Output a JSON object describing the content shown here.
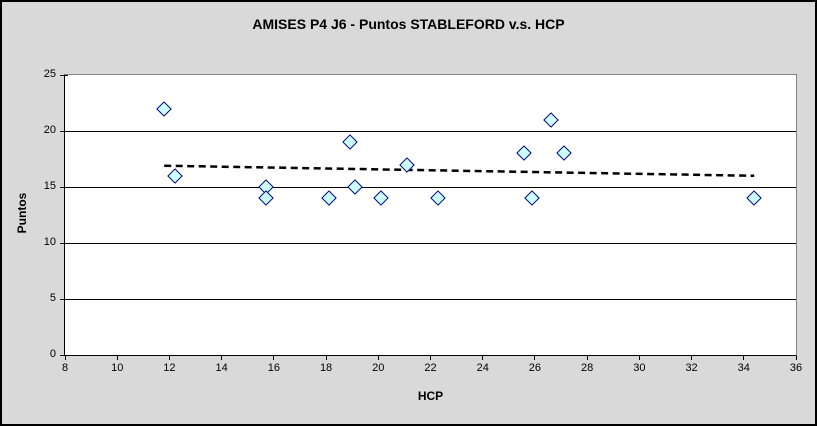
{
  "chart_data": {
    "type": "scatter",
    "title": "AMISES P4 J6 - Puntos STABLEFORD v.s. HCP",
    "xlabel": "HCP",
    "ylabel": "Puntos",
    "xlim": [
      8,
      36
    ],
    "ylim": [
      0,
      25
    ],
    "x_ticks": [
      8,
      10,
      12,
      14,
      16,
      18,
      20,
      22,
      24,
      26,
      28,
      30,
      32,
      34,
      36
    ],
    "y_ticks": [
      0,
      5,
      10,
      15,
      20,
      25
    ],
    "grid": "horizontal-only",
    "legend": "none",
    "marker_shape": "diamond",
    "series": [
      {
        "name": "Puntos STABLEFORD",
        "points": [
          [
            11.8,
            22
          ],
          [
            12.2,
            16
          ],
          [
            15.7,
            15
          ],
          [
            15.7,
            14
          ],
          [
            18.1,
            14
          ],
          [
            18.9,
            19
          ],
          [
            19.1,
            15
          ],
          [
            20.1,
            14
          ],
          [
            21.1,
            17
          ],
          [
            22.3,
            14
          ],
          [
            25.6,
            18
          ],
          [
            25.9,
            14
          ],
          [
            26.6,
            21
          ],
          [
            27.1,
            18
          ],
          [
            34.4,
            14
          ]
        ]
      }
    ],
    "trendline": {
      "style": "dashed",
      "start": [
        11.8,
        16.9
      ],
      "end": [
        34.4,
        16.0
      ]
    }
  },
  "colors": {
    "chart_bg": "#D9D9D9",
    "plot_bg": "#FFFFFF",
    "gridline": "#000000",
    "axis": "#000000",
    "plot_border": "#848484",
    "marker_fill": "#CCFFFF",
    "marker_border": "#000080",
    "trendline": "#000000",
    "text": "#000000"
  }
}
